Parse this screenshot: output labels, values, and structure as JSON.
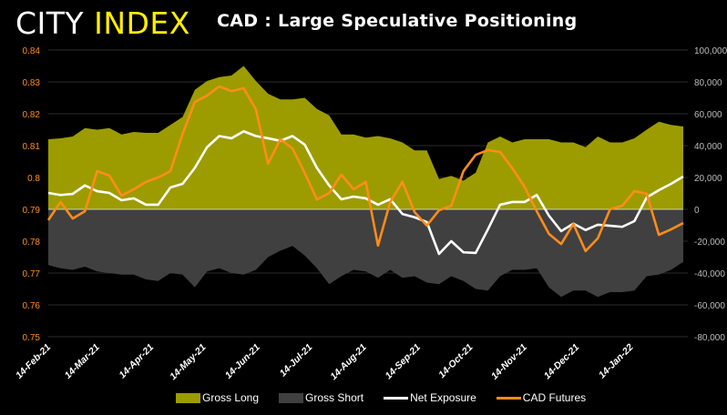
{
  "logo": {
    "part1": "CITY",
    "part2": "INDEX"
  },
  "chart_data": {
    "type": "area+line",
    "title": "CAD : Large Speculative Positioning",
    "x": [
      "2021-02-14",
      "2021-02-21",
      "2021-02-28",
      "2021-03-07",
      "2021-03-14",
      "2021-03-21",
      "2021-03-28",
      "2021-04-04",
      "2021-04-11",
      "2021-04-18",
      "2021-04-25",
      "2021-05-02",
      "2021-05-09",
      "2021-05-16",
      "2021-05-23",
      "2021-05-30",
      "2021-06-06",
      "2021-06-13",
      "2021-06-20",
      "2021-06-27",
      "2021-07-04",
      "2021-07-11",
      "2021-07-18",
      "2021-07-25",
      "2021-08-01",
      "2021-08-08",
      "2021-08-15",
      "2021-08-22",
      "2021-08-29",
      "2021-09-05",
      "2021-09-12",
      "2021-09-19",
      "2021-09-26",
      "2021-10-03",
      "2021-10-10",
      "2021-10-17",
      "2021-10-24",
      "2021-10-31",
      "2021-11-07",
      "2021-11-14",
      "2021-11-21",
      "2021-11-28",
      "2021-12-05",
      "2021-12-12",
      "2021-12-19",
      "2021-12-26",
      "2022-01-02",
      "2022-01-09",
      "2022-01-16",
      "2022-01-23",
      "2022-01-30",
      "2022-02-06",
      "2022-02-13"
    ],
    "x_ticks": [
      "14-Feb-21",
      "14-Mar-21",
      "14-Apr-21",
      "14-May-21",
      "14-Jun-21",
      "14-Jul-21",
      "14-Aug-21",
      "14-Sep-21",
      "14-Oct-21",
      "14-Nov-21",
      "14-Dec-21",
      "14-Jan-22"
    ],
    "y_left": {
      "range": [
        0.75,
        0.84
      ],
      "ticks": [
        "0.84",
        "0.83",
        "0.82",
        "0.81",
        "0.8",
        "0.79",
        "0.78",
        "0.77",
        "0.76",
        "0.75"
      ]
    },
    "y_right": {
      "range": [
        -80000,
        100000
      ],
      "ticks": [
        "100,000",
        "80,000",
        "60,000",
        "40,000",
        "20,000",
        "0",
        "-20,000",
        "-40,000",
        "-60,000",
        "-80,000"
      ]
    },
    "grid": true,
    "legend_position": "bottom",
    "series": [
      {
        "name": "Gross Long",
        "kind": "area",
        "axis": "right",
        "color": "#9c9c00",
        "values": [
          44000,
          44600,
          45700,
          51000,
          50000,
          51000,
          47000,
          48600,
          48000,
          48000,
          53000,
          58000,
          75000,
          80600,
          83000,
          84000,
          90000,
          80600,
          72600,
          69000,
          69000,
          70000,
          63000,
          59000,
          47000,
          47000,
          45000,
          46000,
          44600,
          42000,
          37000,
          37000,
          19000,
          21000,
          18000,
          23000,
          42000,
          45700,
          42000,
          44000,
          44000,
          44000,
          42000,
          42000,
          39000,
          45700,
          42000,
          42000,
          44600,
          50000,
          55000,
          53000,
          52000
        ]
      },
      {
        "name": "Gross Short",
        "kind": "area",
        "axis": "right",
        "color": "#404040",
        "values": [
          -35000,
          -37000,
          -38000,
          -36000,
          -39000,
          -40000,
          -41000,
          -41000,
          -44000,
          -45000,
          -40000,
          -41000,
          -49000,
          -39000,
          -37000,
          -40000,
          -41000,
          -38000,
          -30000,
          -26000,
          -23000,
          -29000,
          -37000,
          -47000,
          -42000,
          -38000,
          -39000,
          -43000,
          -38000,
          -43000,
          -42000,
          -46000,
          -47000,
          -42000,
          -45000,
          -50000,
          -51000,
          -42000,
          -38000,
          -38000,
          -37000,
          -49000,
          -55000,
          -51000,
          -51000,
          -55000,
          -52000,
          -52000,
          -51000,
          -42000,
          -41000,
          -38000,
          -33000
        ]
      },
      {
        "name": "Net Exposure",
        "kind": "line",
        "axis": "right",
        "color": "#ffffff",
        "values": [
          10300,
          9000,
          9700,
          15000,
          11400,
          10300,
          5700,
          6900,
          2900,
          2900,
          13700,
          16000,
          26000,
          39000,
          46000,
          44600,
          49000,
          46000,
          44600,
          43000,
          46000,
          40600,
          26000,
          15000,
          6300,
          8000,
          6900,
          2900,
          6300,
          -2900,
          -5000,
          -8000,
          -28000,
          -20000,
          -27000,
          -27400,
          -12600,
          2900,
          4600,
          4600,
          9000,
          -4000,
          -13700,
          -9000,
          -13000,
          -9700,
          -10300,
          -11000,
          -7400,
          7400,
          12000,
          16000,
          20600
        ]
      },
      {
        "name": "CAD Futures",
        "kind": "line",
        "axis": "left",
        "color": "#ff8c1a",
        "values": [
          0.7866,
          0.7923,
          0.7871,
          0.7894,
          0.802,
          0.8006,
          0.7943,
          0.7963,
          0.7986,
          0.8,
          0.802,
          0.8137,
          0.8237,
          0.8257,
          0.8286,
          0.8271,
          0.828,
          0.8214,
          0.8043,
          0.812,
          0.8091,
          0.8014,
          0.7931,
          0.7951,
          0.8009,
          0.7963,
          0.7986,
          0.7786,
          0.7923,
          0.7986,
          0.7891,
          0.7849,
          0.7897,
          0.7911,
          0.802,
          0.8071,
          0.8086,
          0.808,
          0.8029,
          0.7971,
          0.7894,
          0.7823,
          0.7791,
          0.7854,
          0.7769,
          0.7809,
          0.79,
          0.7911,
          0.7957,
          0.7949,
          0.782,
          0.7837,
          0.7857
        ]
      }
    ]
  }
}
